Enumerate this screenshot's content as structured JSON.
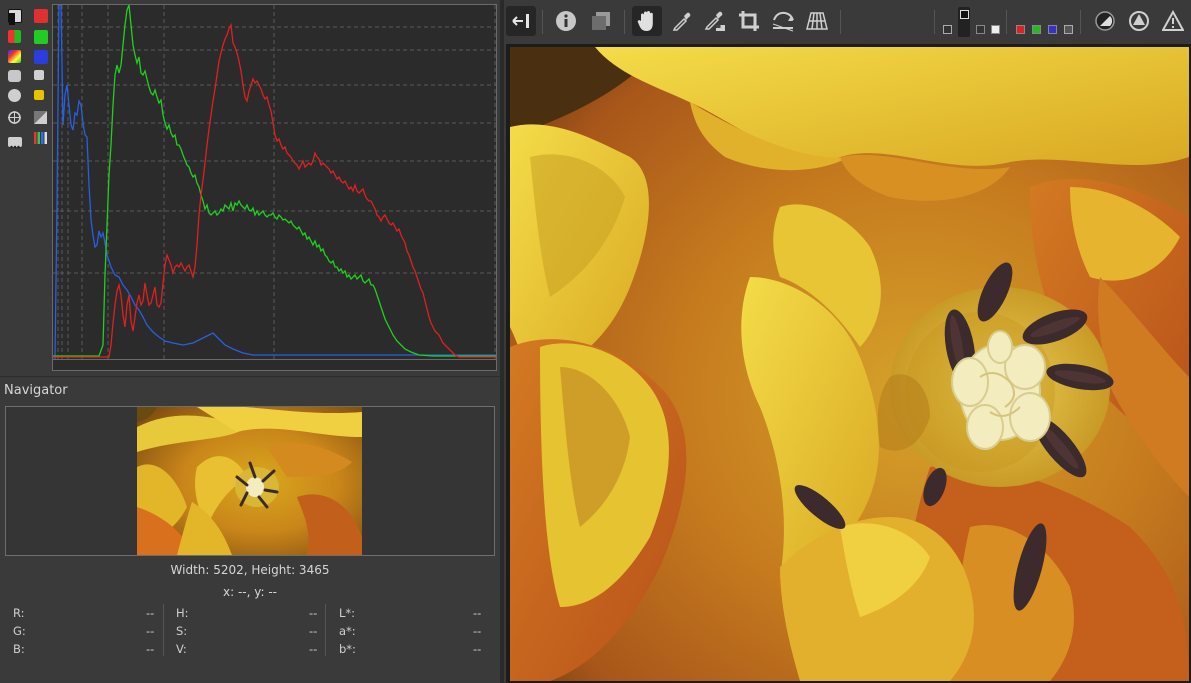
{
  "navigator": {
    "title": "Navigator",
    "dimensions": "Width: 5202, Height: 3465",
    "cursor": "x: --, y: --"
  },
  "pixel_info": {
    "col1": [
      {
        "label": "R:",
        "value": "--"
      },
      {
        "label": "G:",
        "value": "--"
      },
      {
        "label": "B:",
        "value": "--"
      }
    ],
    "col2": [
      {
        "label": "H:",
        "value": "--"
      },
      {
        "label": "S:",
        "value": "--"
      },
      {
        "label": "V:",
        "value": "--"
      }
    ],
    "col3": [
      {
        "label": "L*:",
        "value": "--"
      },
      {
        "label": "a*:",
        "value": "--"
      },
      {
        "label": "b*:",
        "value": "--"
      }
    ]
  },
  "histogram": {
    "channels": [
      "red",
      "green",
      "blue"
    ],
    "colors": {
      "red": "#e02020",
      "green": "#20d020",
      "blue": "#2a5fe0"
    }
  },
  "toolbar": {
    "icons": [
      "panel-toggle-icon",
      "info-icon",
      "before-after-icon",
      "hand-icon",
      "color-picker-icon",
      "white-balance-picker-icon",
      "crop-icon",
      "straighten-icon",
      "perspective-icon"
    ],
    "active": "hand-icon"
  }
}
